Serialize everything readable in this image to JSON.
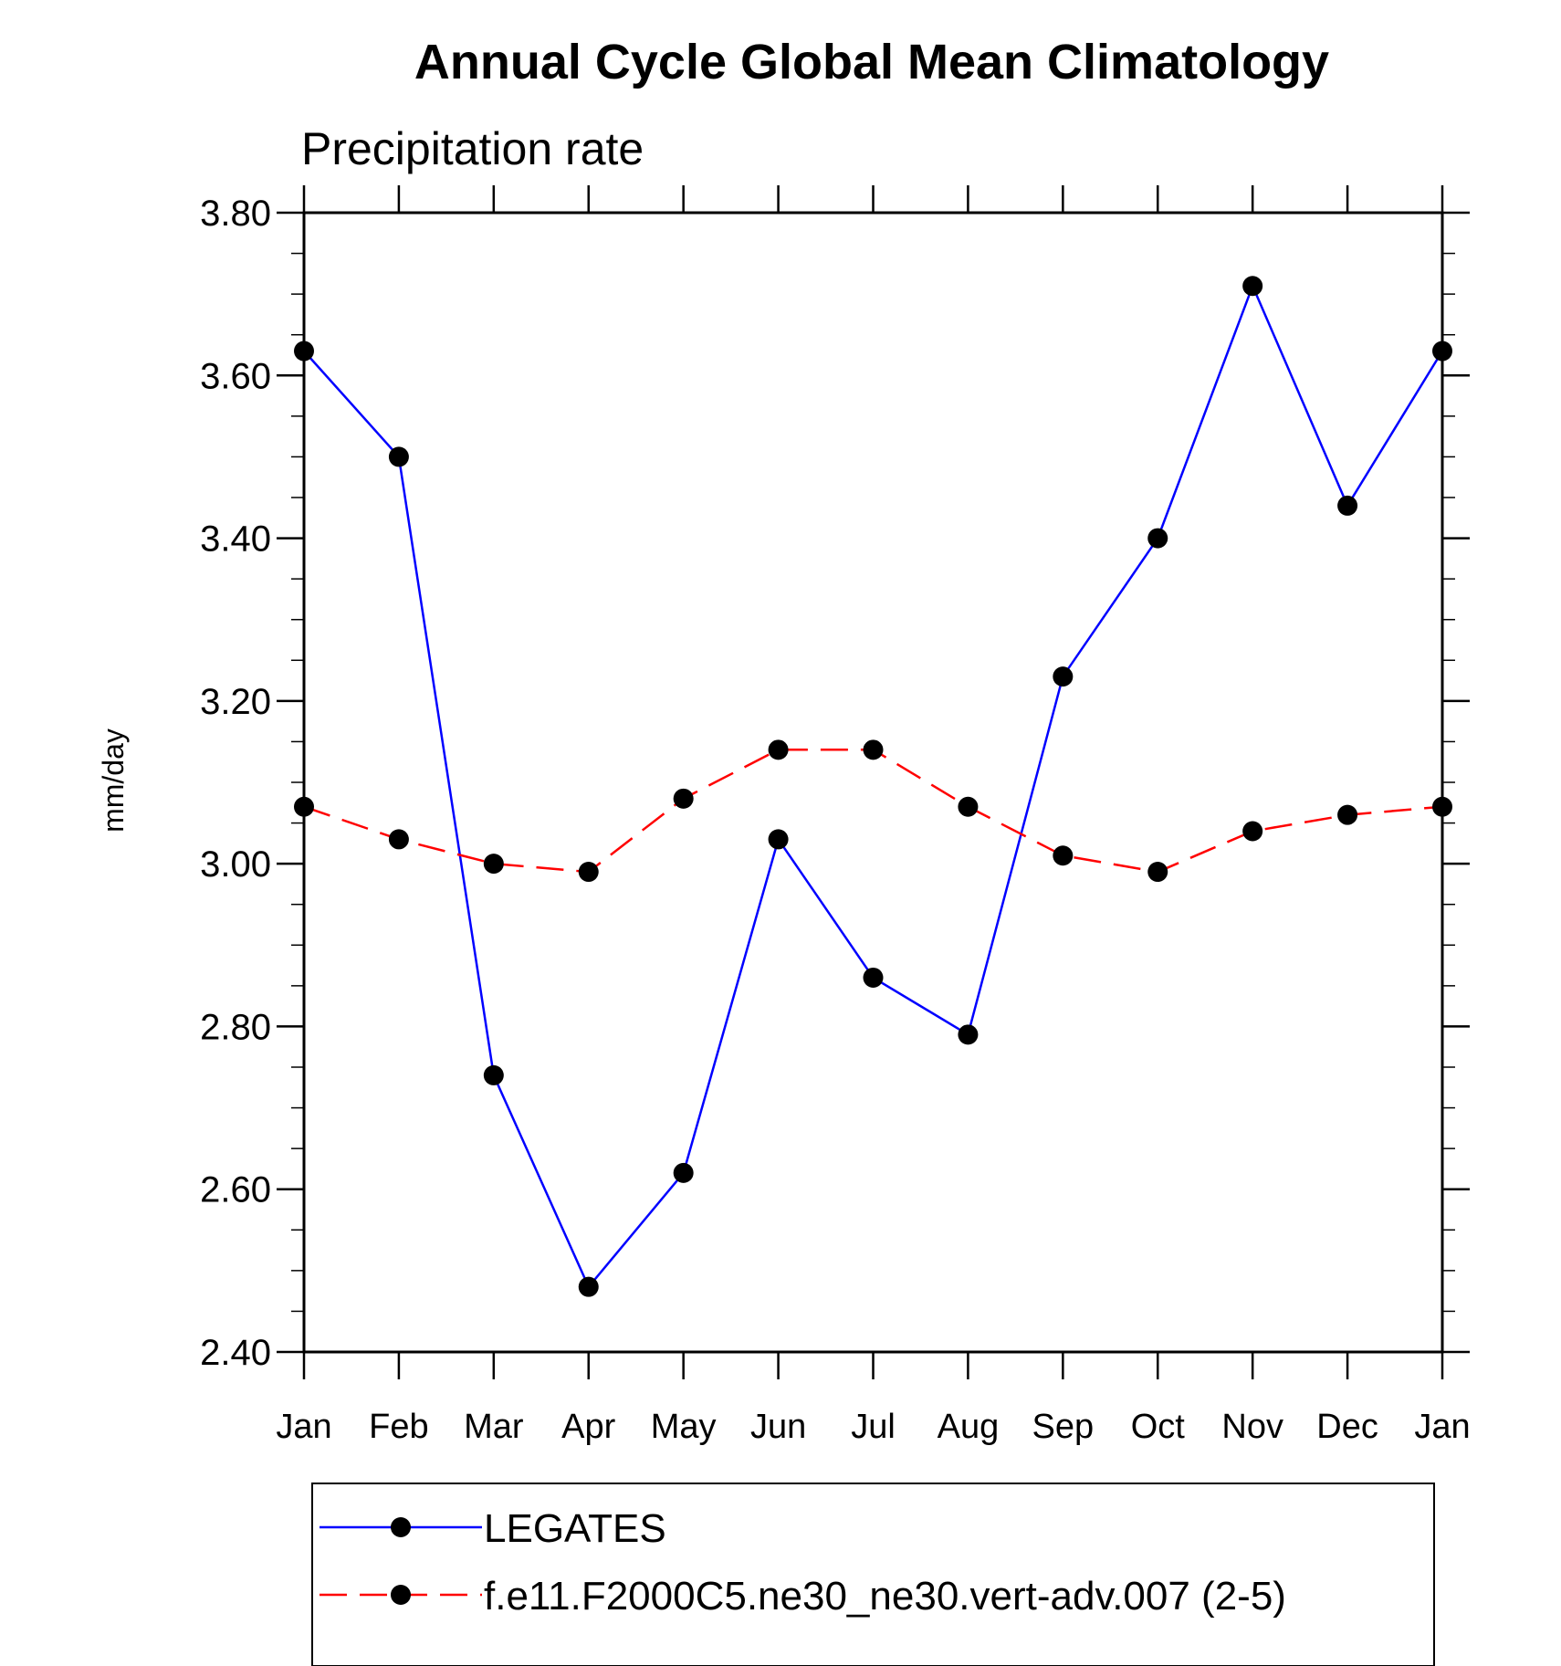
{
  "chart_data": {
    "type": "line",
    "title": "Annual Cycle Global Mean Climatology",
    "subtitle": "Precipitation rate",
    "ylabel": "mm/day",
    "xlabel": "",
    "ylim": [
      2.4,
      3.8
    ],
    "y_ticks": [
      "2.40",
      "2.60",
      "2.80",
      "3.00",
      "3.20",
      "3.40",
      "3.60",
      "3.80"
    ],
    "categories": [
      "Jan",
      "Feb",
      "Mar",
      "Apr",
      "May",
      "Jun",
      "Jul",
      "Aug",
      "Sep",
      "Oct",
      "Nov",
      "Dec",
      "Jan"
    ],
    "series": [
      {
        "name": "LEGATES",
        "color": "#0000ff",
        "dash": "solid",
        "values": [
          3.63,
          3.5,
          2.74,
          2.48,
          2.62,
          3.03,
          2.86,
          2.79,
          3.23,
          3.4,
          3.71,
          3.44,
          3.63
        ]
      },
      {
        "name": "f.e11.F2000C5.ne30_ne30.vert-adv.007 (2-5)",
        "color": "#ff0000",
        "dash": "dashed",
        "values": [
          3.07,
          3.03,
          3.0,
          2.99,
          3.08,
          3.14,
          3.14,
          3.07,
          3.01,
          2.99,
          3.04,
          3.06,
          3.07
        ]
      }
    ],
    "grid": false,
    "legend_position": "bottom"
  }
}
